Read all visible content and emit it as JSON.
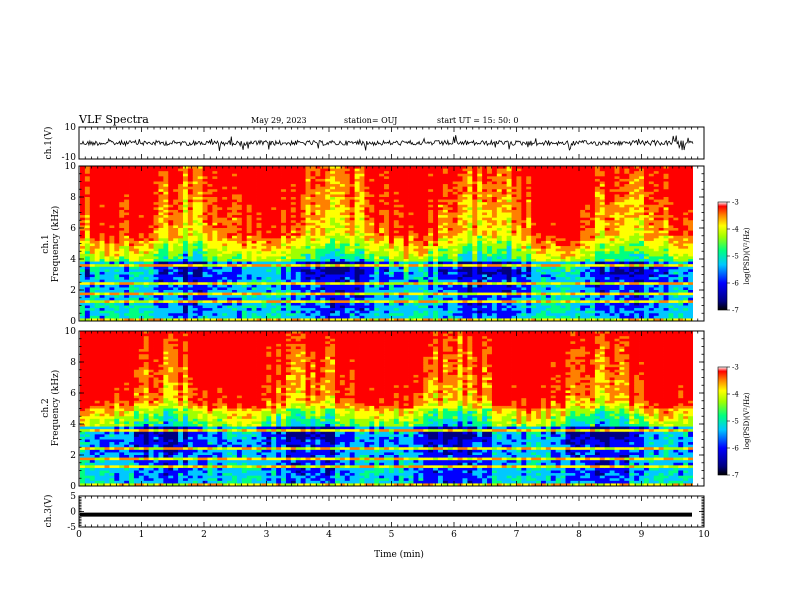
{
  "header": {
    "title": "VLF Spectra",
    "date": "May 29, 2023",
    "station": "station= OUJ",
    "start": "start  UT =   15: 50: 0"
  },
  "chart_data": [
    {
      "type": "line",
      "name": "ch1-waveform",
      "ylabel": "ch.1(V)",
      "ylim": [
        -10,
        10
      ],
      "yticks": [
        "10",
        "-10"
      ],
      "xlim": [
        0,
        10
      ]
    },
    {
      "type": "heatmap",
      "name": "ch1-spectrogram",
      "ylabel": "ch.1\nFrequency (kHz)",
      "ylabel_line1": "ch.1",
      "ylabel_line2": "Frequency (kHz)",
      "ylim": [
        0,
        10
      ],
      "yticks": [
        "0",
        "2",
        "4",
        "6",
        "8",
        "10"
      ],
      "xlim": [
        0,
        10
      ],
      "colorbar": {
        "label": "log(PSD)(V²/Hz)",
        "range": [
          -7,
          -3
        ],
        "ticks": [
          "-3",
          "-4",
          "-5",
          "-6",
          "-7"
        ]
      }
    },
    {
      "type": "heatmap",
      "name": "ch2-spectrogram",
      "ylabel_line1": "ch.2",
      "ylabel_line2": "Frequency (kHz)",
      "ylim": [
        0,
        10
      ],
      "yticks": [
        "0",
        "2",
        "4",
        "6",
        "8",
        "10"
      ],
      "xlim": [
        0,
        10
      ],
      "colorbar": {
        "label": "log(PSD)(V²/Hz)",
        "range": [
          -7,
          -3
        ],
        "ticks": [
          "-3",
          "-4",
          "-5",
          "-6",
          "-7"
        ]
      }
    },
    {
      "type": "line",
      "name": "ch3-waveform",
      "ylabel": "ch.3(V)",
      "ylim": [
        -5,
        5
      ],
      "yticks": [
        "5",
        "0",
        "-5"
      ],
      "xlim": [
        0,
        10
      ],
      "xlabel": "Time (min)",
      "xticks": [
        "0",
        "1",
        "2",
        "3",
        "4",
        "5",
        "6",
        "7",
        "8",
        "9",
        "10"
      ]
    }
  ],
  "colors": {
    "colormap": [
      "#000080",
      "#0000ff",
      "#00c8ff",
      "#00ff80",
      "#a0ff00",
      "#ffff00",
      "#ff8000",
      "#ff0000"
    ]
  }
}
